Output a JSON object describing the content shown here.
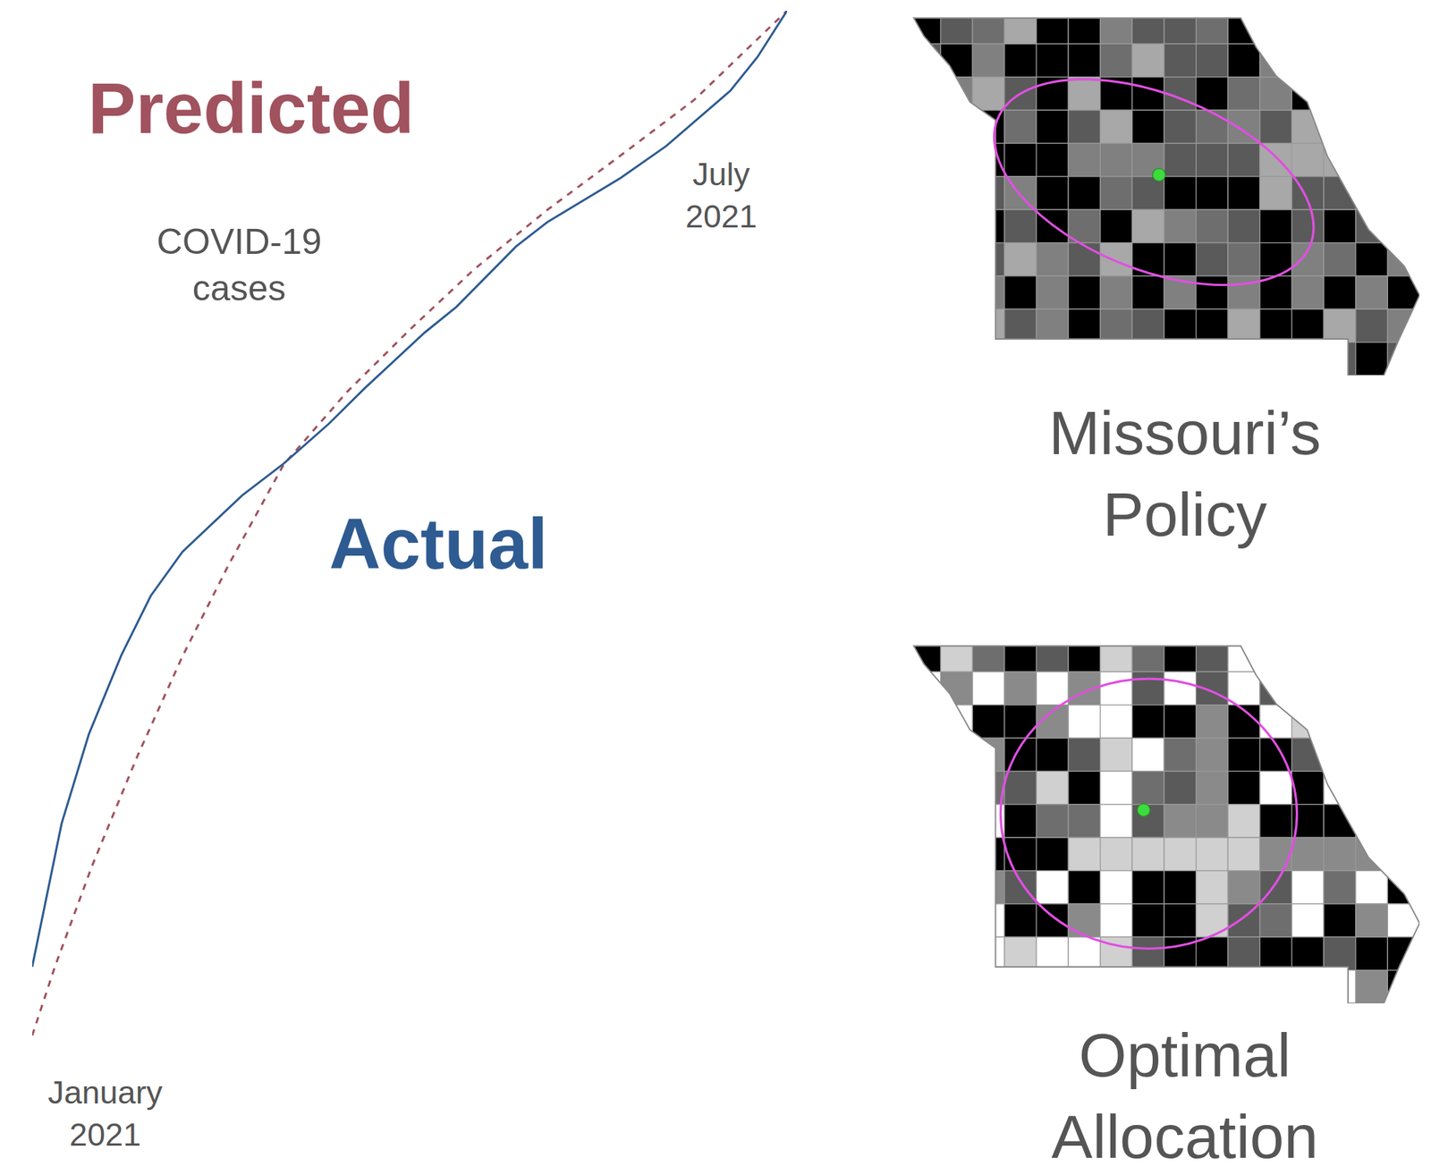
{
  "chart_data": {
    "type": "line",
    "xlim": [
      0,
      100
    ],
    "ylim": [
      0,
      100
    ],
    "tick_labels": false,
    "grid": false,
    "series": [
      {
        "name": "Predicted",
        "color": "#a0525e",
        "line_style": "dashed",
        "x": [
          0,
          3.0,
          7.9,
          13.9,
          19.9,
          26.0,
          33.3,
          41.7,
          50.2,
          58.6,
          68.3,
          78.0,
          87.7,
          100
        ],
        "values": [
          0,
          6.7,
          16.5,
          27.2,
          37.0,
          45.9,
          55.7,
          62.8,
          69.0,
          74.8,
          80.6,
          85.9,
          91.3,
          100
        ]
      },
      {
        "name": "Actual",
        "color": "#2e5b91",
        "line_style": "solid",
        "x": [
          0,
          3.9,
          7.5,
          11.8,
          15.7,
          19.9,
          27.8,
          33.3,
          39.3,
          44.1,
          52.0,
          56.2,
          64.1,
          68.3,
          78.0,
          84.0,
          92.5,
          96.1,
          100
        ],
        "values": [
          6.7,
          20.7,
          29.4,
          37.1,
          42.9,
          47.2,
          52.7,
          55.8,
          59.7,
          63.2,
          68.6,
          71.1,
          77.0,
          79.4,
          83.7,
          86.8,
          92.2,
          95.5,
          100
        ]
      }
    ],
    "annotations": [
      "COVID-19 cases",
      "July 2021",
      "January 2021"
    ]
  },
  "maps": [
    {
      "title": "Missouri’s Policy"
    },
    {
      "title": "Optimal Allocation"
    }
  ]
}
